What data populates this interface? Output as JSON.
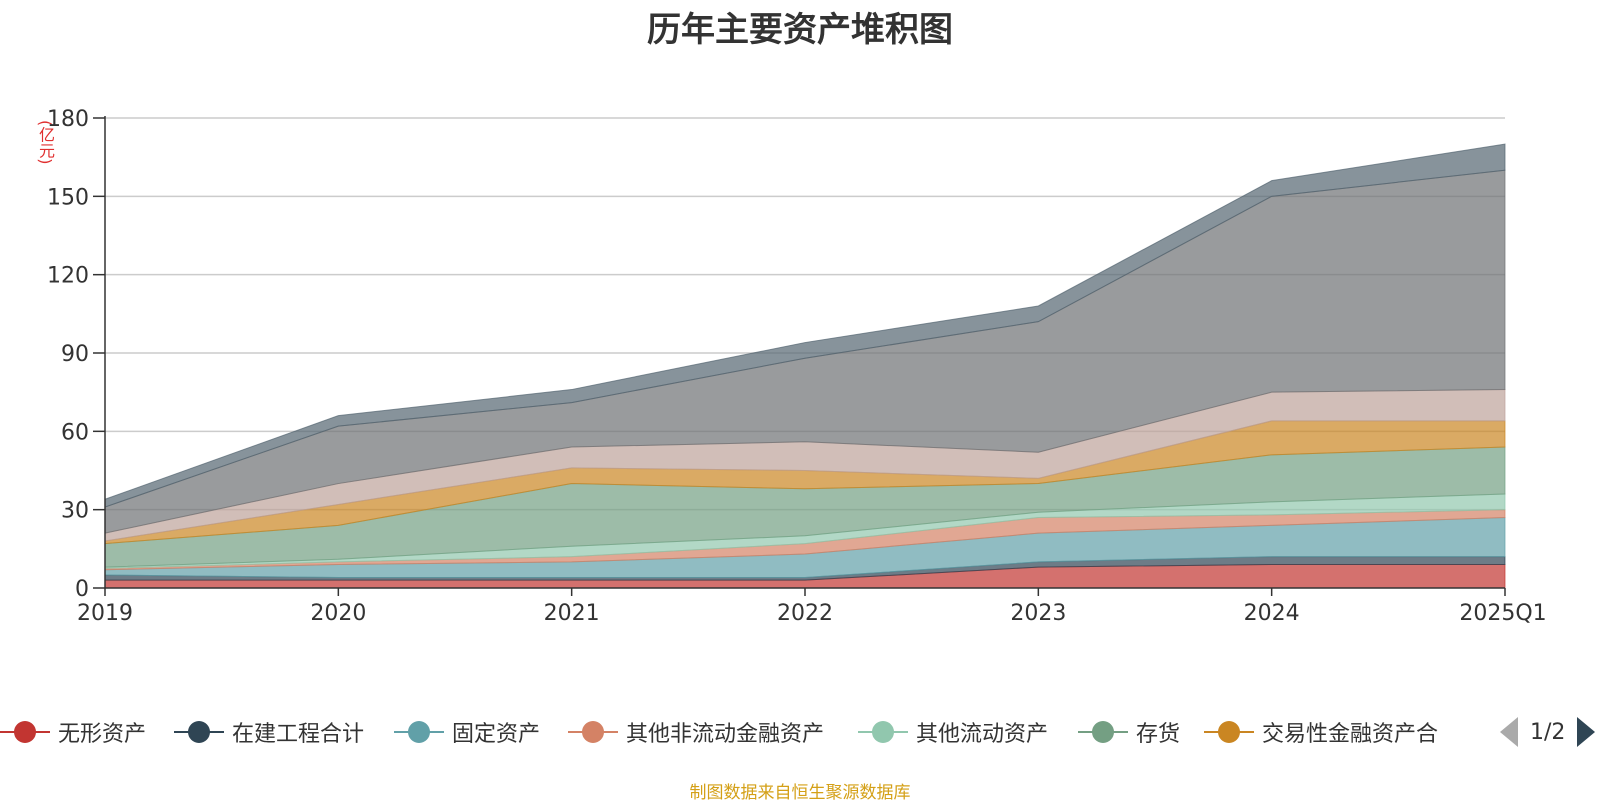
{
  "chart_data": {
    "type": "area",
    "title": "历年主要资产堆积图",
    "y_unit": "(亿元)",
    "categories": [
      "2019",
      "2020",
      "2021",
      "2022",
      "2023",
      "2024",
      "2025Q1"
    ],
    "ylim": [
      0,
      180
    ],
    "yticks": [
      0,
      30,
      60,
      90,
      120,
      150,
      180
    ],
    "grid": true,
    "stacked": true,
    "legend_position": "bottom",
    "series": [
      {
        "name": "无形资产",
        "color": "#c23531",
        "values": [
          3,
          3,
          3,
          3,
          8,
          9,
          9
        ]
      },
      {
        "name": "在建工程合计",
        "color": "#2f4554",
        "values": [
          2,
          1,
          1,
          1,
          2,
          3,
          3
        ]
      },
      {
        "name": "固定资产",
        "color": "#61a0a8",
        "values": [
          2,
          5,
          6,
          9,
          11,
          12,
          15
        ]
      },
      {
        "name": "其他非流动金融资产",
        "color": "#d48265",
        "values": [
          0.5,
          1,
          2,
          4,
          6,
          4,
          3
        ]
      },
      {
        "name": "其他流动资产",
        "color": "#91c7ae",
        "values": [
          0.5,
          1,
          4,
          3,
          2,
          5,
          6
        ]
      },
      {
        "name": "存货",
        "color": "#749f83",
        "values": [
          9,
          13,
          24,
          18,
          11,
          18,
          18
        ]
      },
      {
        "name": "交易性金融资产合",
        "color": "#ca8622",
        "values": [
          1,
          8,
          6,
          7,
          2,
          13,
          10
        ]
      },
      {
        "name": "",
        "color": "#bda29a",
        "values": [
          3,
          8,
          8,
          11,
          10,
          11,
          12
        ]
      },
      {
        "name": "",
        "color": "#6e7074",
        "values": [
          10,
          22,
          17,
          32,
          50,
          75,
          84
        ]
      },
      {
        "name": "",
        "color": "#546570",
        "values": [
          3,
          4,
          5,
          6,
          6,
          6,
          10
        ]
      }
    ]
  },
  "legend": {
    "items": [
      {
        "label": "无形资产",
        "color": "#c23531"
      },
      {
        "label": "在建工程合计",
        "color": "#2f4554"
      },
      {
        "label": "固定资产",
        "color": "#61a0a8"
      },
      {
        "label": "其他非流动金融资产",
        "color": "#d48265"
      },
      {
        "label": "其他流动资产",
        "color": "#91c7ae"
      },
      {
        "label": "存货",
        "color": "#749f83"
      },
      {
        "label": "交易性金融资产合",
        "color": "#ca8622"
      }
    ],
    "page_indicator": "1/2"
  },
  "source_note": "制图数据来自恒生聚源数据库"
}
